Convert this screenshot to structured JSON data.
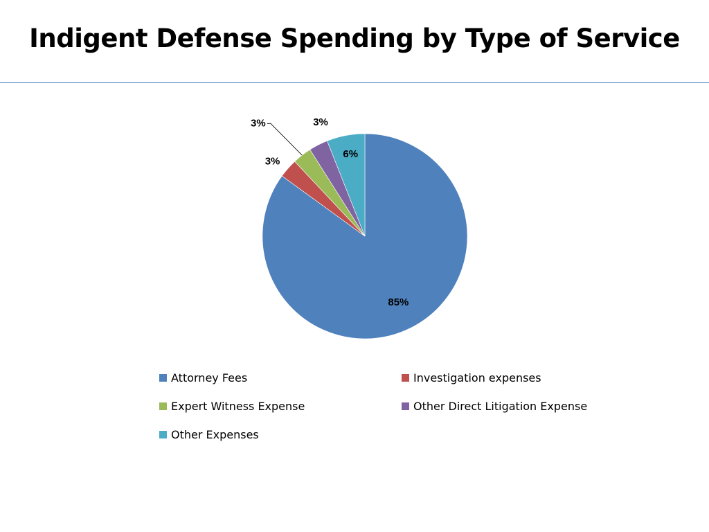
{
  "slide": {
    "title": "Indigent Defense Spending by Type of Service"
  },
  "chart_data": {
    "type": "pie",
    "title": "",
    "start_angle_deg": 0,
    "direction": "clockwise",
    "legend_position": "bottom",
    "slices": [
      {
        "name": "Attorney Fees",
        "value": 85,
        "label": "85%",
        "color": "#4f81bd"
      },
      {
        "name": "Investigation expenses",
        "value": 3,
        "label": "3%",
        "color": "#c0504d"
      },
      {
        "name": "Expert Witness Expense",
        "value": 3,
        "label": "3%",
        "color": "#9bbb59"
      },
      {
        "name": "Other Direct Litigation Expense",
        "value": 3,
        "label": "3%",
        "color": "#8064a2"
      },
      {
        "name": "Other Expenses",
        "value": 6,
        "label": "6%",
        "color": "#4bacc6"
      }
    ]
  }
}
